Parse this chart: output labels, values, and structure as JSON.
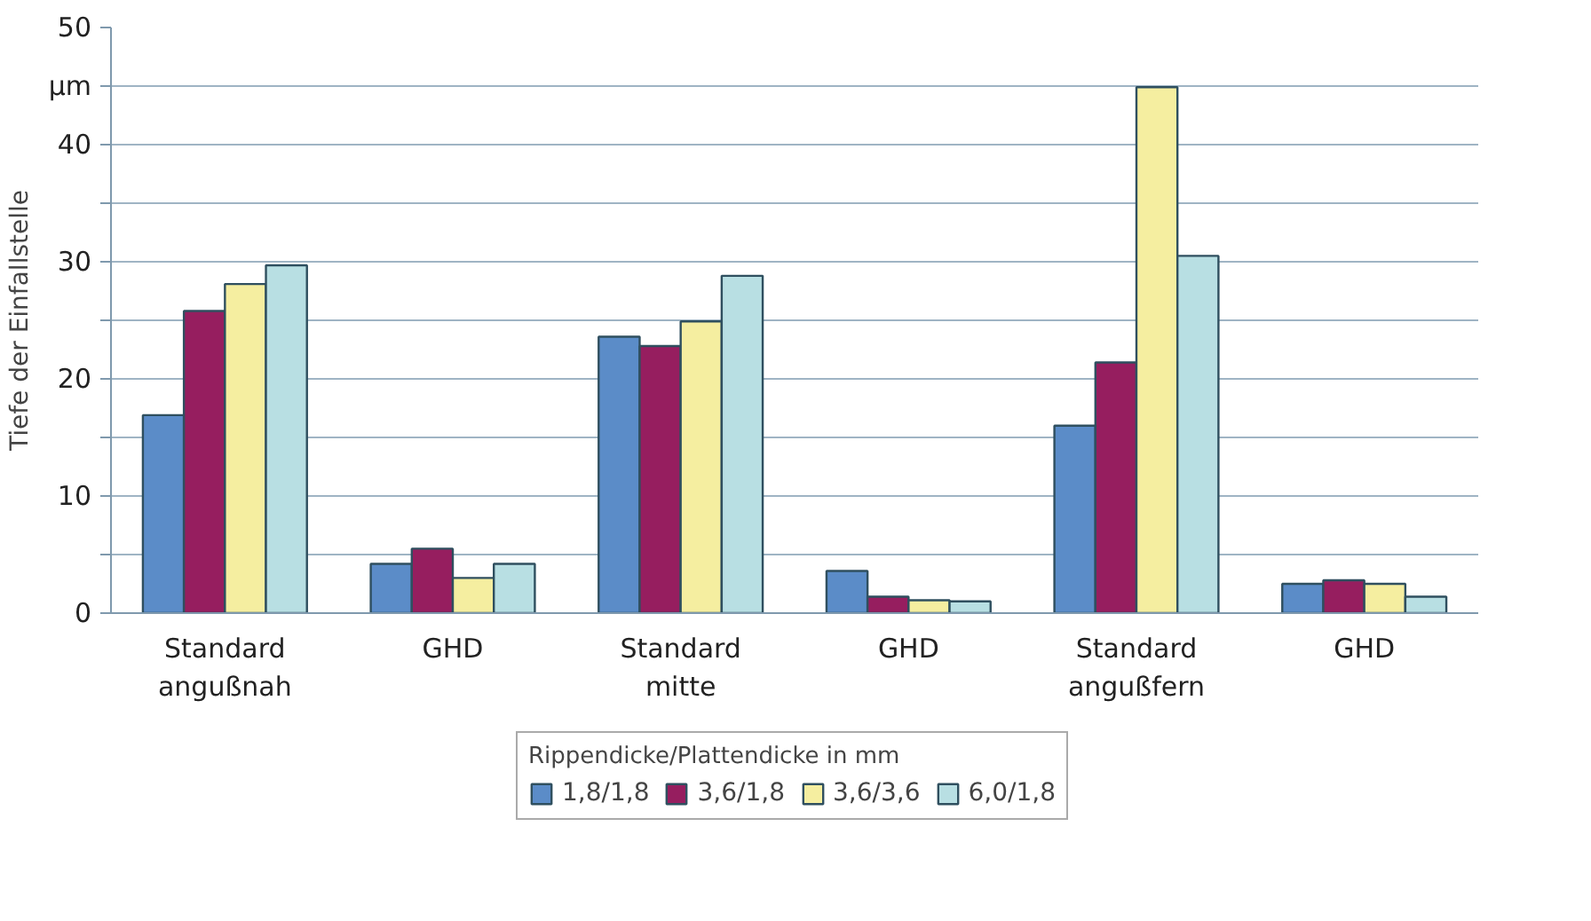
{
  "chart_data": {
    "type": "bar",
    "ylabel": "Tiefe der Einfallstelle",
    "legend_title": "Rippendicke/Plattendicke in mm",
    "categories": [
      "Standard\nangußnah",
      "GHD",
      "Standard\nmitte",
      "GHD",
      "Standard\nangußfern",
      "GHD"
    ],
    "series": [
      {
        "name": "1,8/1,8",
        "color": "#5b8cc8",
        "values": [
          16.9,
          4.2,
          23.6,
          3.6,
          16.0,
          2.5
        ]
      },
      {
        "name": "3,6/1,8",
        "color": "#961e5f",
        "values": [
          25.8,
          5.5,
          22.8,
          1.4,
          21.4,
          2.8
        ]
      },
      {
        "name": "3,6/3,6",
        "color": "#f5eea0",
        "values": [
          28.1,
          3.0,
          24.9,
          1.1,
          44.9,
          2.5
        ]
      },
      {
        "name": "6,0/1,8",
        "color": "#b8dfe3",
        "values": [
          29.7,
          4.2,
          28.8,
          1.0,
          30.5,
          1.4
        ]
      }
    ],
    "ylim": [
      0,
      50
    ],
    "yticks": [
      0,
      {
        "value": 5,
        "label": null
      },
      10,
      {
        "value": 15,
        "label": null
      },
      20,
      {
        "value": 25,
        "label": null
      },
      30,
      {
        "value": 35,
        "label": null
      },
      40,
      {
        "value": 45,
        "label": "µm"
      },
      50
    ],
    "grid": "y",
    "legend": "bottom"
  }
}
